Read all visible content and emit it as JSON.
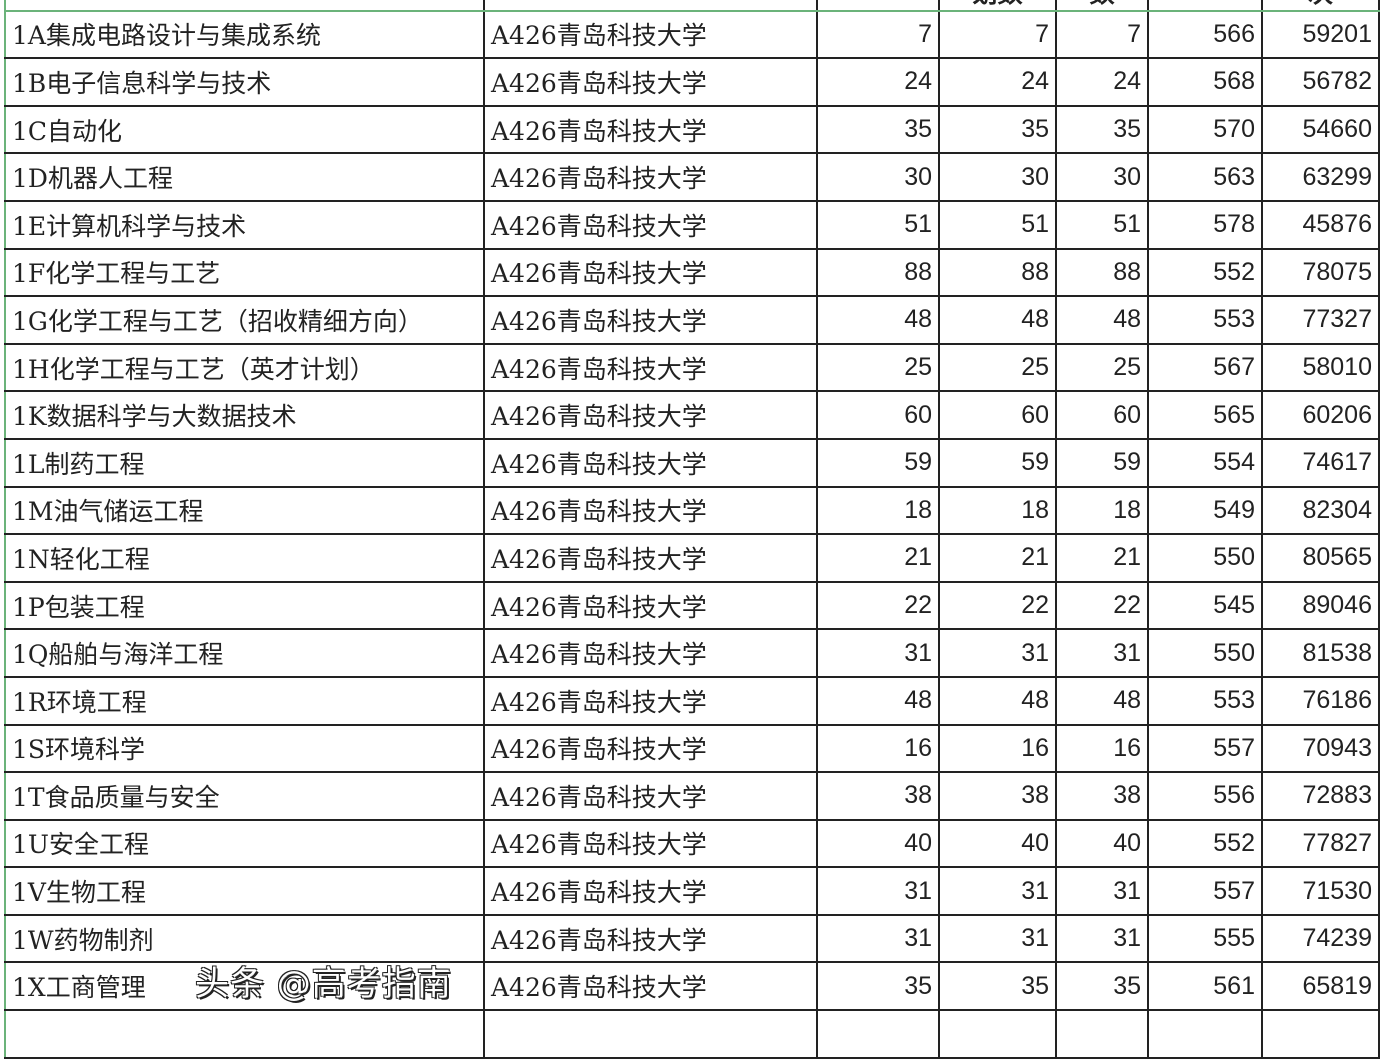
{
  "header": [
    "",
    "",
    "",
    "划数",
    "数",
    "",
    "次"
  ],
  "rows": [
    [
      "1A集成电路设计与集成系统",
      "A426青岛科技大学",
      "7",
      "7",
      "7",
      "566",
      "59201"
    ],
    [
      "1B电子信息科学与技术",
      "A426青岛科技大学",
      "24",
      "24",
      "24",
      "568",
      "56782"
    ],
    [
      "1C自动化",
      "A426青岛科技大学",
      "35",
      "35",
      "35",
      "570",
      "54660"
    ],
    [
      "1D机器人工程",
      "A426青岛科技大学",
      "30",
      "30",
      "30",
      "563",
      "63299"
    ],
    [
      "1E计算机科学与技术",
      "A426青岛科技大学",
      "51",
      "51",
      "51",
      "578",
      "45876"
    ],
    [
      "1F化学工程与工艺",
      "A426青岛科技大学",
      "88",
      "88",
      "88",
      "552",
      "78075"
    ],
    [
      "1G化学工程与工艺（招收精细方向）",
      "A426青岛科技大学",
      "48",
      "48",
      "48",
      "553",
      "77327"
    ],
    [
      "1H化学工程与工艺（英才计划）",
      "A426青岛科技大学",
      "25",
      "25",
      "25",
      "567",
      "58010"
    ],
    [
      "1K数据科学与大数据技术",
      "A426青岛科技大学",
      "60",
      "60",
      "60",
      "565",
      "60206"
    ],
    [
      "1L制药工程",
      "A426青岛科技大学",
      "59",
      "59",
      "59",
      "554",
      "74617"
    ],
    [
      "1M油气储运工程",
      "A426青岛科技大学",
      "18",
      "18",
      "18",
      "549",
      "82304"
    ],
    [
      "1N轻化工程",
      "A426青岛科技大学",
      "21",
      "21",
      "21",
      "550",
      "80565"
    ],
    [
      "1P包装工程",
      "A426青岛科技大学",
      "22",
      "22",
      "22",
      "545",
      "89046"
    ],
    [
      "1Q船舶与海洋工程",
      "A426青岛科技大学",
      "31",
      "31",
      "31",
      "550",
      "81538"
    ],
    [
      "1R环境工程",
      "A426青岛科技大学",
      "48",
      "48",
      "48",
      "553",
      "76186"
    ],
    [
      "1S环境科学",
      "A426青岛科技大学",
      "16",
      "16",
      "16",
      "557",
      "70943"
    ],
    [
      "1T食品质量与安全",
      "A426青岛科技大学",
      "38",
      "38",
      "38",
      "556",
      "72883"
    ],
    [
      "1U安全工程",
      "A426青岛科技大学",
      "40",
      "40",
      "40",
      "552",
      "77827"
    ],
    [
      "1V生物工程",
      "A426青岛科技大学",
      "31",
      "31",
      "31",
      "557",
      "71530"
    ],
    [
      "1W药物制剂",
      "A426青岛科技大学",
      "31",
      "31",
      "31",
      "555",
      "74239"
    ],
    [
      "1X工商管理",
      "A426青岛科技大学",
      "35",
      "35",
      "35",
      "561",
      "65819"
    ],
    [
      "",
      "",
      "",
      "",
      "",
      "",
      ""
    ]
  ],
  "watermark": "头条 @高考指南"
}
